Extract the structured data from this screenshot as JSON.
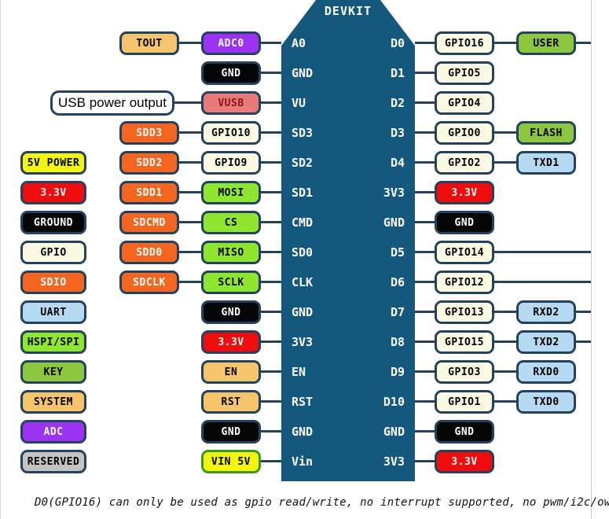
{
  "board": {
    "title": "DEVKIT",
    "left_pins": [
      "A0",
      "GND",
      "VU",
      "SD3",
      "SD2",
      "SD1",
      "CMD",
      "SD0",
      "CLK",
      "GND",
      "3V3",
      "EN",
      "RST",
      "GND",
      "Vin"
    ],
    "right_pins": [
      "D0",
      "D1",
      "D2",
      "D3",
      "D4",
      "3V3",
      "GND",
      "D5",
      "D6",
      "D7",
      "D8",
      "D9",
      "D10",
      "GND",
      "3V3"
    ]
  },
  "legend": {
    "items": [
      {
        "label": "5V POWER",
        "type": "power5v"
      },
      {
        "label": "3.3V",
        "type": "power33"
      },
      {
        "label": "GROUND",
        "type": "ground"
      },
      {
        "label": "GPIO",
        "type": "gpio"
      },
      {
        "label": "SDIO",
        "type": "sdio"
      },
      {
        "label": "UART",
        "type": "uart"
      },
      {
        "label": "HSPI/SPI",
        "type": "hspi"
      },
      {
        "label": "KEY",
        "type": "key"
      },
      {
        "label": "SYSTEM",
        "type": "system"
      },
      {
        "label": "ADC",
        "type": "adc"
      },
      {
        "label": "RESERVED",
        "type": "reserved"
      }
    ]
  },
  "left_outer": [
    {
      "row": 1,
      "label": "TOUT",
      "type": "system"
    },
    {
      "row": 3,
      "label": "USB power output",
      "type": "callout",
      "wide": true
    },
    {
      "row": 4,
      "label": "SDD3",
      "type": "sdio"
    },
    {
      "row": 5,
      "label": "SDD2",
      "type": "sdio"
    },
    {
      "row": 6,
      "label": "SDD1",
      "type": "sdio"
    },
    {
      "row": 7,
      "label": "SDCMD",
      "type": "sdio"
    },
    {
      "row": 8,
      "label": "SDD0",
      "type": "sdio"
    },
    {
      "row": 9,
      "label": "SDCLK",
      "type": "sdio"
    }
  ],
  "left_inner": [
    {
      "row": 1,
      "label": "ADC0",
      "type": "adc"
    },
    {
      "row": 2,
      "label": "GND",
      "type": "ground"
    },
    {
      "row": 3,
      "label": "VUSB",
      "type": "vusb"
    },
    {
      "row": 4,
      "label": "GPIO10",
      "type": "gpio"
    },
    {
      "row": 5,
      "label": "GPIO9",
      "type": "gpio"
    },
    {
      "row": 6,
      "label": "MOSI",
      "type": "hspi"
    },
    {
      "row": 7,
      "label": "CS",
      "type": "hspi"
    },
    {
      "row": 8,
      "label": "MISO",
      "type": "hspi"
    },
    {
      "row": 9,
      "label": "SCLK",
      "type": "hspi"
    },
    {
      "row": 10,
      "label": "GND",
      "type": "ground"
    },
    {
      "row": 11,
      "label": "3.3V",
      "type": "power33"
    },
    {
      "row": 12,
      "label": "EN",
      "type": "system"
    },
    {
      "row": 13,
      "label": "RST",
      "type": "system"
    },
    {
      "row": 14,
      "label": "GND",
      "type": "ground"
    },
    {
      "row": 15,
      "label": "VIN 5V",
      "type": "power5v",
      "green_border": true
    }
  ],
  "right_inner": [
    {
      "row": 1,
      "label": "GPIO16",
      "type": "gpio"
    },
    {
      "row": 2,
      "label": "GPIO5",
      "type": "gpio"
    },
    {
      "row": 3,
      "label": "GPIO4",
      "type": "gpio"
    },
    {
      "row": 4,
      "label": "GPIO0",
      "type": "gpio"
    },
    {
      "row": 5,
      "label": "GPIO2",
      "type": "gpio"
    },
    {
      "row": 6,
      "label": "3.3V",
      "type": "power33"
    },
    {
      "row": 7,
      "label": "GND",
      "type": "ground"
    },
    {
      "row": 8,
      "label": "GPIO14",
      "type": "gpio"
    },
    {
      "row": 9,
      "label": "GPIO12",
      "type": "gpio"
    },
    {
      "row": 10,
      "label": "GPIO13",
      "type": "gpio"
    },
    {
      "row": 11,
      "label": "GPIO15",
      "type": "gpio"
    },
    {
      "row": 12,
      "label": "GPIO3",
      "type": "gpio"
    },
    {
      "row": 13,
      "label": "GPIO1",
      "type": "gpio"
    },
    {
      "row": 14,
      "label": "GND",
      "type": "ground"
    },
    {
      "row": 15,
      "label": "3.3V",
      "type": "power33"
    }
  ],
  "right_outer": [
    {
      "row": 1,
      "label": "USER",
      "type": "key"
    },
    {
      "row": 4,
      "label": "FLASH",
      "type": "key"
    },
    {
      "row": 5,
      "label": "TXD1",
      "type": "uart"
    },
    {
      "row": 10,
      "label": "RXD2",
      "type": "uart"
    },
    {
      "row": 11,
      "label": "TXD2",
      "type": "uart"
    },
    {
      "row": 12,
      "label": "RXD0",
      "type": "uart"
    },
    {
      "row": 13,
      "label": "TXD0",
      "type": "uart"
    }
  ],
  "extensions": {
    "rows": [
      1,
      8,
      9,
      10,
      11
    ]
  },
  "note": {
    "text": "D0(GPIO16) can only be used as gpio read/write, no interrupt supported, no pwm/i2c/ow"
  },
  "colors": {
    "power5v": {
      "bg": "#f2f50e",
      "fg": "#000000"
    },
    "power33": {
      "bg": "#ee0c0c",
      "fg": "#ffffff"
    },
    "ground": {
      "bg": "#060606",
      "fg": "#ffffff"
    },
    "gpio": {
      "bg": "#fcf9e2",
      "fg": "#000000"
    },
    "sdio": {
      "bg": "#f4661f",
      "fg": "#ffffff"
    },
    "uart": {
      "bg": "#b6d9f2",
      "fg": "#000000"
    },
    "hspi": {
      "bg": "#8fe62e",
      "fg": "#000000"
    },
    "key": {
      "bg": "#8cc63f",
      "fg": "#000000"
    },
    "system": {
      "bg": "#f6c46a",
      "fg": "#000000"
    },
    "adc": {
      "bg": "#9a33f2",
      "fg": "#ffffff"
    },
    "reserved": {
      "bg": "#c4c4c4",
      "fg": "#000000"
    },
    "vusb": {
      "bg": "#e87a7a",
      "fg": "#8a1616"
    },
    "callout": {
      "bg": "#ffffff",
      "fg": "#000000"
    },
    "board": "#14587e",
    "wire": "#24425e",
    "vin_border": "#3f9718"
  }
}
